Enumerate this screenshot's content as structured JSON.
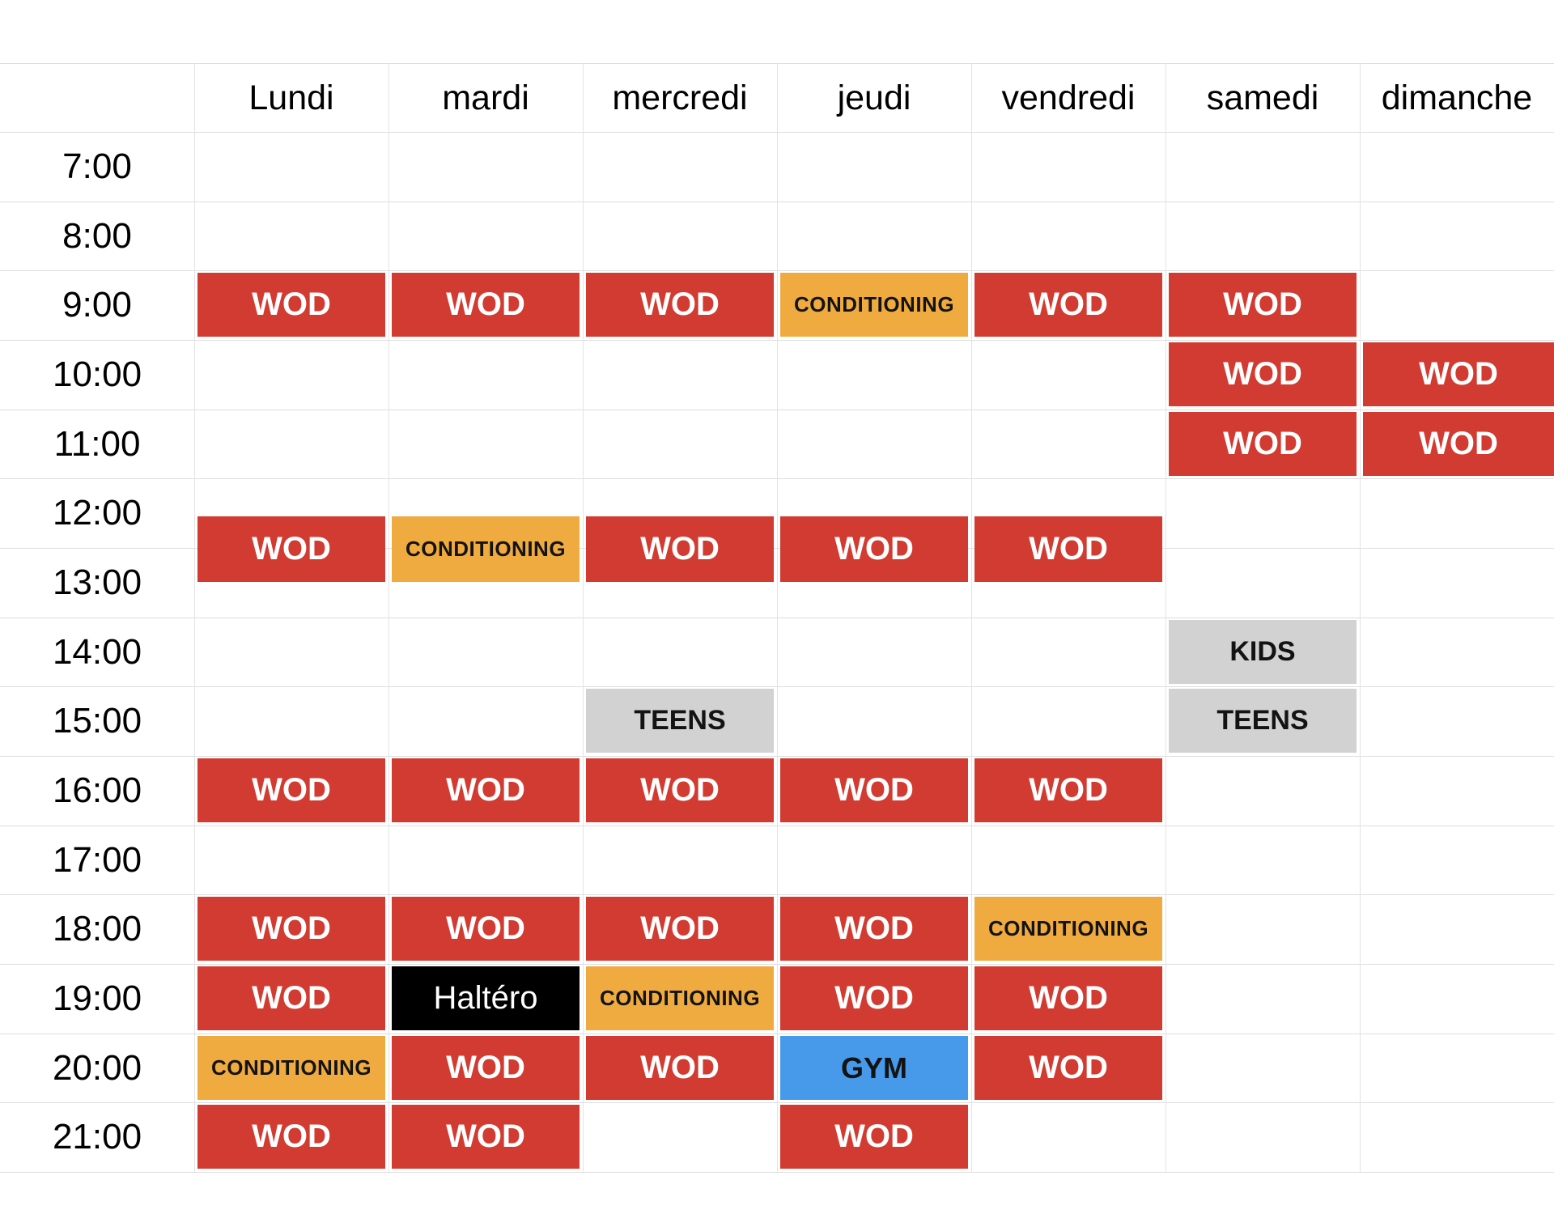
{
  "days": [
    "Lundi",
    "mardi",
    "mercredi",
    "jeudi",
    "vendredi",
    "samedi",
    "dimanche"
  ],
  "times": [
    "7:00",
    "8:00",
    "9:00",
    "10:00",
    "11:00",
    "12:00",
    "13:00",
    "14:00",
    "15:00",
    "16:00",
    "17:00",
    "18:00",
    "19:00",
    "20:00",
    "21:00"
  ],
  "event_types": {
    "wod": {
      "label": "WOD",
      "bg": "#d23b31",
      "fg": "#ffffff"
    },
    "conditioning": {
      "label": "CONDITIONING",
      "bg": "#efab40",
      "fg": "#131313"
    },
    "kids": {
      "label": "KIDS",
      "bg": "#d2d2d2",
      "fg": "#131313"
    },
    "teens": {
      "label": "TEENS",
      "bg": "#d2d2d2",
      "fg": "#131313"
    },
    "gym": {
      "label": "GYM",
      "bg": "#479ae9",
      "fg": "#131313"
    },
    "haltero": {
      "label": "Haltéro",
      "bg": "#000000",
      "fg": "#ffffff"
    }
  },
  "events": [
    {
      "day": "Lundi",
      "time": "9:00",
      "type": "wod",
      "label": "WOD",
      "start_offset_min": 0
    },
    {
      "day": "mardi",
      "time": "9:00",
      "type": "wod",
      "label": "WOD",
      "start_offset_min": 0
    },
    {
      "day": "mercredi",
      "time": "9:00",
      "type": "wod",
      "label": "WOD",
      "start_offset_min": 0
    },
    {
      "day": "jeudi",
      "time": "9:00",
      "type": "conditioning",
      "label": "CONDITIONING",
      "start_offset_min": 0
    },
    {
      "day": "vendredi",
      "time": "9:00",
      "type": "wod",
      "label": "WOD",
      "start_offset_min": 0
    },
    {
      "day": "samedi",
      "time": "9:00",
      "type": "wod",
      "label": "WOD",
      "start_offset_min": 0
    },
    {
      "day": "samedi",
      "time": "10:00",
      "type": "wod",
      "label": "WOD",
      "start_offset_min": 0
    },
    {
      "day": "dimanche",
      "time": "10:00",
      "type": "wod",
      "label": "WOD",
      "start_offset_min": 0
    },
    {
      "day": "samedi",
      "time": "11:00",
      "type": "wod",
      "label": "WOD",
      "start_offset_min": 0
    },
    {
      "day": "dimanche",
      "time": "11:00",
      "type": "wod",
      "label": "WOD",
      "start_offset_min": 0
    },
    {
      "day": "Lundi",
      "time": "12:00",
      "type": "wod",
      "label": "WOD",
      "start_offset_min": 30
    },
    {
      "day": "mardi",
      "time": "12:00",
      "type": "conditioning",
      "label": "CONDITIONING",
      "start_offset_min": 30
    },
    {
      "day": "mercredi",
      "time": "12:00",
      "type": "wod",
      "label": "WOD",
      "start_offset_min": 30
    },
    {
      "day": "jeudi",
      "time": "12:00",
      "type": "wod",
      "label": "WOD",
      "start_offset_min": 30
    },
    {
      "day": "vendredi",
      "time": "12:00",
      "type": "wod",
      "label": "WOD",
      "start_offset_min": 30
    },
    {
      "day": "samedi",
      "time": "14:00",
      "type": "kids",
      "label": "KIDS",
      "start_offset_min": 0
    },
    {
      "day": "mercredi",
      "time": "15:00",
      "type": "teens",
      "label": "TEENS",
      "start_offset_min": 0
    },
    {
      "day": "samedi",
      "time": "15:00",
      "type": "teens",
      "label": "TEENS",
      "start_offset_min": 0
    },
    {
      "day": "Lundi",
      "time": "16:00",
      "type": "wod",
      "label": "WOD",
      "start_offset_min": 0
    },
    {
      "day": "mardi",
      "time": "16:00",
      "type": "wod",
      "label": "WOD",
      "start_offset_min": 0
    },
    {
      "day": "mercredi",
      "time": "16:00",
      "type": "wod",
      "label": "WOD",
      "start_offset_min": 0
    },
    {
      "day": "jeudi",
      "time": "16:00",
      "type": "wod",
      "label": "WOD",
      "start_offset_min": 0
    },
    {
      "day": "vendredi",
      "time": "16:00",
      "type": "wod",
      "label": "WOD",
      "start_offset_min": 0
    },
    {
      "day": "Lundi",
      "time": "18:00",
      "type": "wod",
      "label": "WOD",
      "start_offset_min": 0
    },
    {
      "day": "mardi",
      "time": "18:00",
      "type": "wod",
      "label": "WOD",
      "start_offset_min": 0
    },
    {
      "day": "mercredi",
      "time": "18:00",
      "type": "wod",
      "label": "WOD",
      "start_offset_min": 0
    },
    {
      "day": "jeudi",
      "time": "18:00",
      "type": "wod",
      "label": "WOD",
      "start_offset_min": 0
    },
    {
      "day": "vendredi",
      "time": "18:00",
      "type": "conditioning",
      "label": "CONDITIONING",
      "start_offset_min": 0
    },
    {
      "day": "Lundi",
      "time": "19:00",
      "type": "wod",
      "label": "WOD",
      "start_offset_min": 0
    },
    {
      "day": "mardi",
      "time": "19:00",
      "type": "haltero",
      "label": "Haltéro",
      "start_offset_min": 0
    },
    {
      "day": "mercredi",
      "time": "19:00",
      "type": "conditioning",
      "label": "CONDITIONING",
      "start_offset_min": 0
    },
    {
      "day": "jeudi",
      "time": "19:00",
      "type": "wod",
      "label": "WOD",
      "start_offset_min": 0
    },
    {
      "day": "vendredi",
      "time": "19:00",
      "type": "wod",
      "label": "WOD",
      "start_offset_min": 0
    },
    {
      "day": "Lundi",
      "time": "20:00",
      "type": "conditioning",
      "label": "CONDITIONING",
      "start_offset_min": 0
    },
    {
      "day": "mardi",
      "time": "20:00",
      "type": "wod",
      "label": "WOD",
      "start_offset_min": 0
    },
    {
      "day": "mercredi",
      "time": "20:00",
      "type": "wod",
      "label": "WOD",
      "start_offset_min": 0
    },
    {
      "day": "jeudi",
      "time": "20:00",
      "type": "gym",
      "label": "GYM",
      "start_offset_min": 0
    },
    {
      "day": "vendredi",
      "time": "20:00",
      "type": "wod",
      "label": "WOD",
      "start_offset_min": 0
    },
    {
      "day": "Lundi",
      "time": "21:00",
      "type": "wod",
      "label": "WOD",
      "start_offset_min": 0
    },
    {
      "day": "mardi",
      "time": "21:00",
      "type": "wod",
      "label": "WOD",
      "start_offset_min": 0
    },
    {
      "day": "jeudi",
      "time": "21:00",
      "type": "wod",
      "label": "WOD",
      "start_offset_min": 0
    }
  ]
}
